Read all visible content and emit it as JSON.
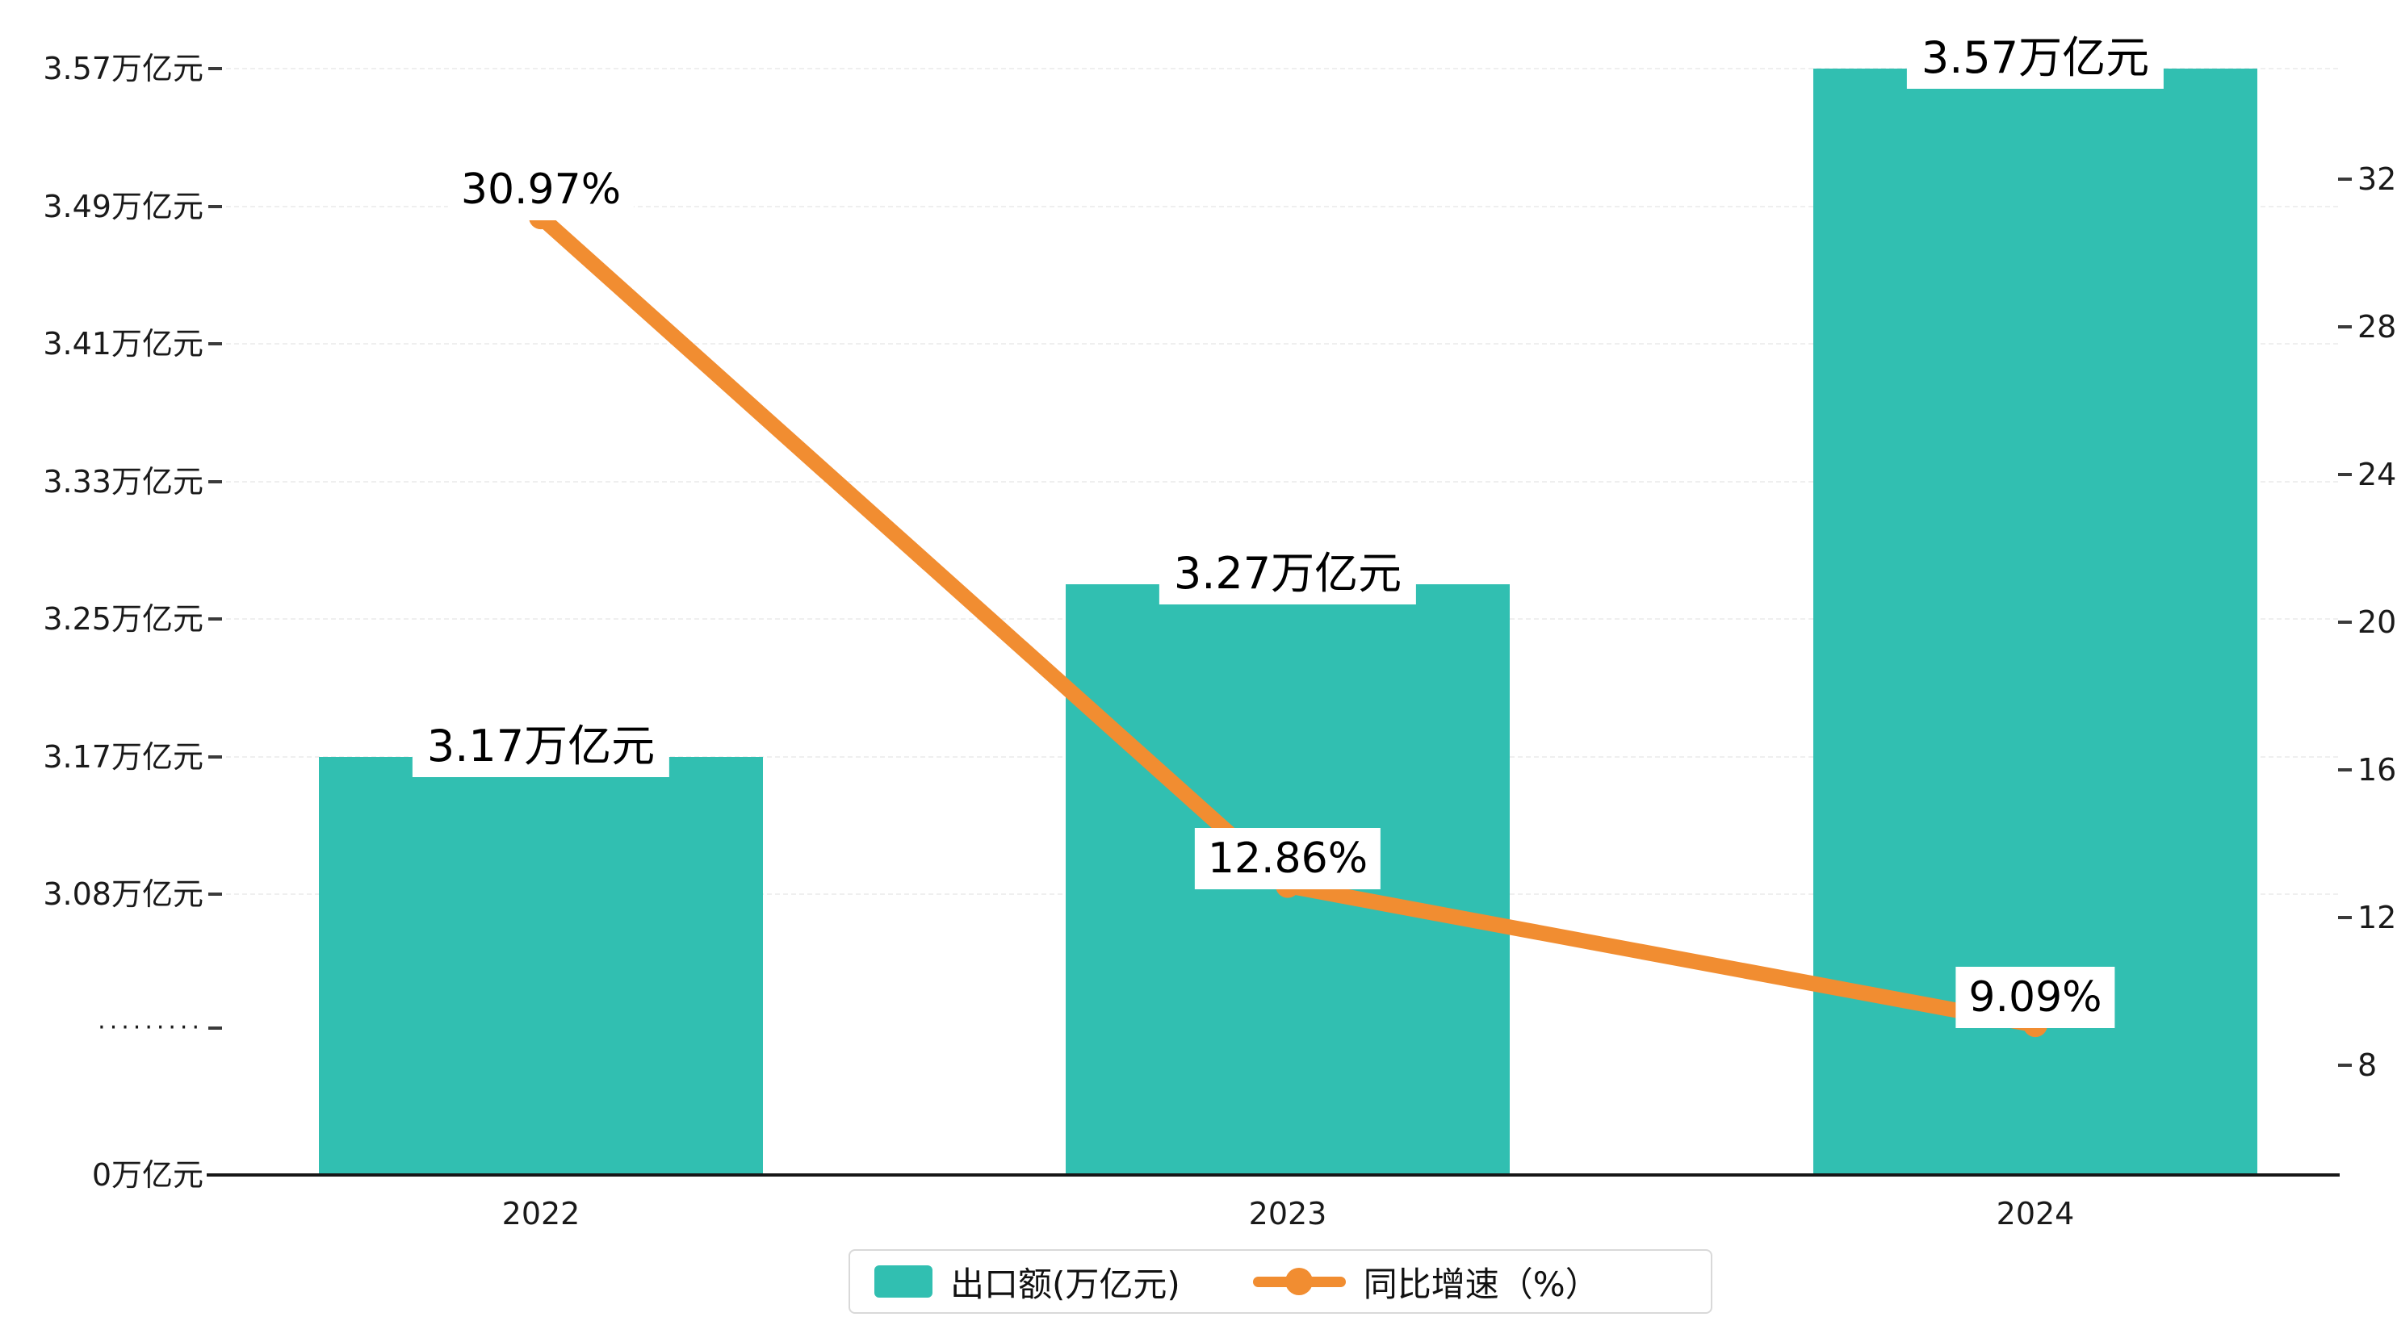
{
  "colors": {
    "bar": "#31bfb1",
    "line": "#f18d31",
    "grid": "#efefef",
    "axis_text": "#1a1a1a"
  },
  "chart_data": {
    "type": "bar",
    "categories": [
      "2022",
      "2023",
      "2024"
    ],
    "series": [
      {
        "name": "出口额(万亿元)",
        "type": "bar",
        "axis": "left",
        "values": [
          3.17,
          3.27,
          3.57
        ],
        "data_labels": [
          "3.17万亿元",
          "3.27万亿元",
          "3.57万亿元"
        ],
        "color": "#31bfb1"
      },
      {
        "name": "同比增速（%）",
        "type": "line",
        "axis": "right",
        "values": [
          30.97,
          12.86,
          9.09
        ],
        "data_labels": [
          "30.97%",
          "12.86%",
          "9.09%"
        ],
        "color": "#f18d31"
      }
    ],
    "left_axis": {
      "tick_labels": [
        "3.57万亿元",
        "3.49万亿元",
        "3.41万亿元",
        "3.33万亿元",
        "3.25万亿元",
        "3.17万亿元",
        "3.08万亿元",
        "·········",
        "0万亿元"
      ],
      "tick_values": [
        3.57,
        3.49,
        3.41,
        3.33,
        3.25,
        3.17,
        3.08,
        null,
        0
      ],
      "broken_axis": true
    },
    "right_axis": {
      "tick_labels": [
        "32",
        "28",
        "24",
        "20",
        "16",
        "12",
        "8"
      ],
      "tick_values": [
        32,
        28,
        24,
        20,
        16,
        12,
        8
      ]
    },
    "x_axis": {
      "tick_labels": [
        "2022",
        "2023",
        "2024"
      ]
    },
    "grid": true,
    "legend": {
      "position": "bottom-center",
      "items": [
        {
          "label": "出口额(万亿元)",
          "marker": "bar-swatch",
          "color": "#31bfb1"
        },
        {
          "label": "同比增速（%）",
          "marker": "line-dot",
          "color": "#f18d31"
        }
      ]
    }
  }
}
